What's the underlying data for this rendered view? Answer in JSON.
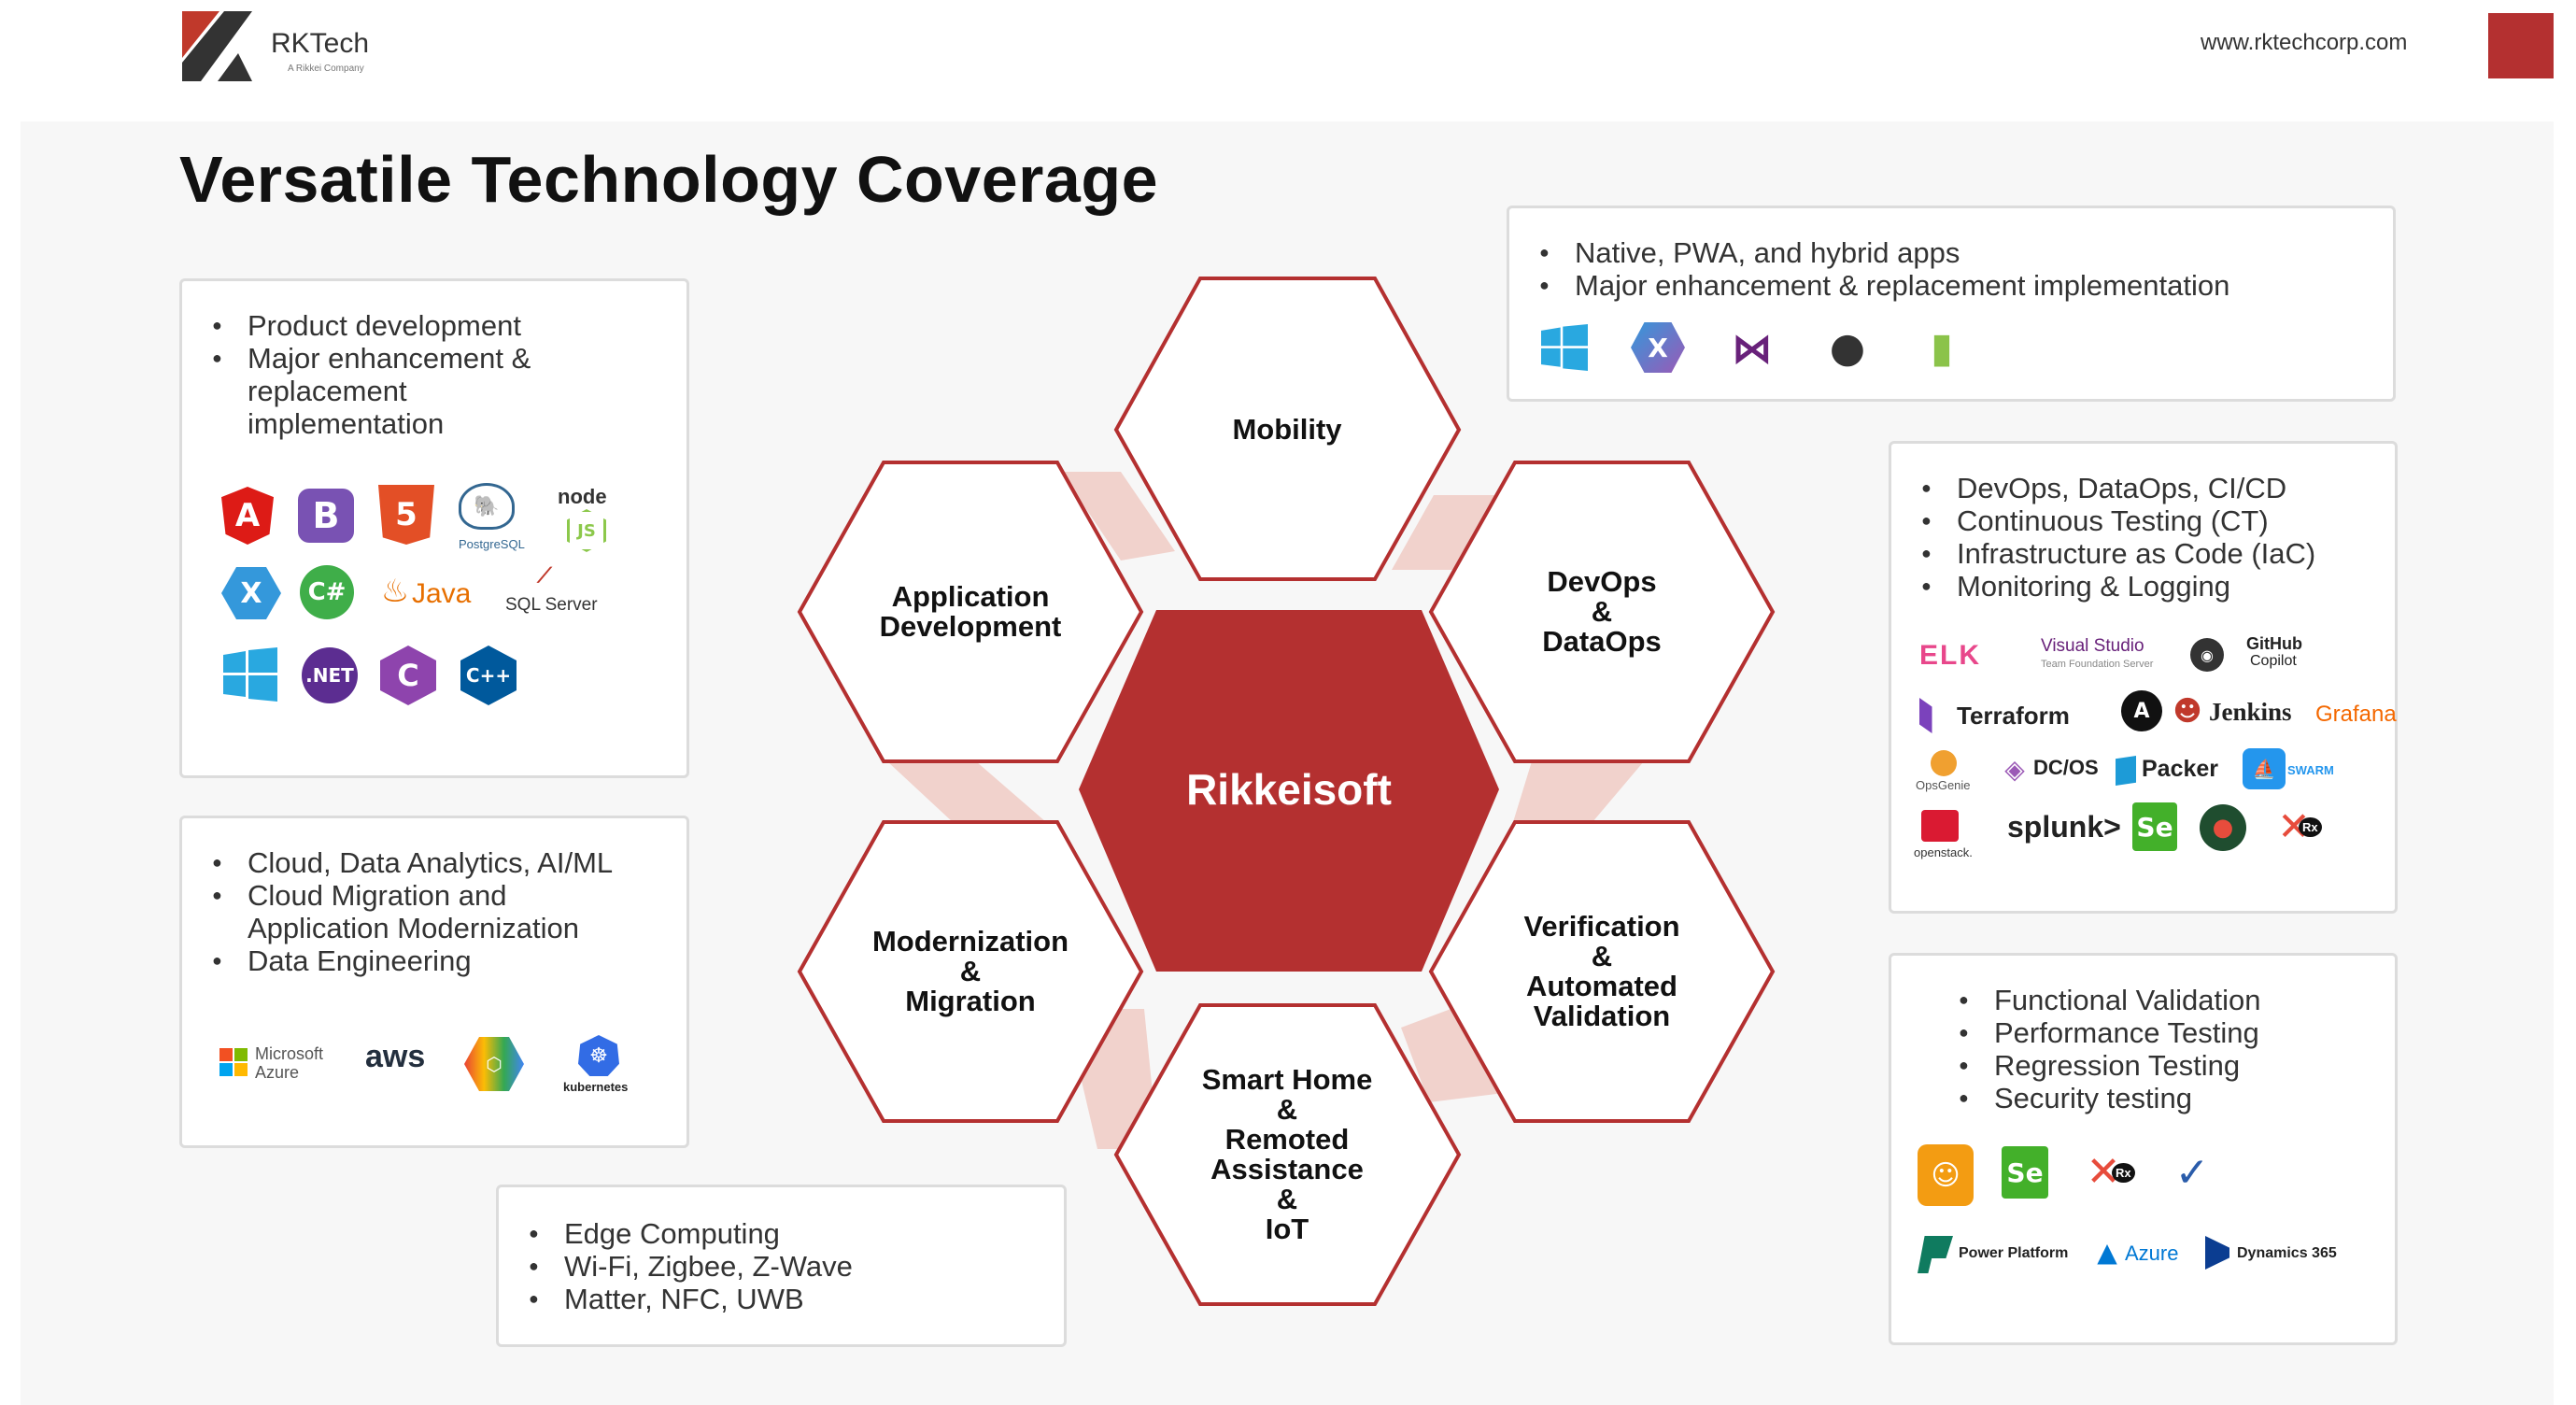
{
  "header": {
    "brand_name": "RKTech",
    "brand_sub": "A Rikkei Company",
    "website": "www.rktechcorp.com"
  },
  "title": "Versatile Technology Coverage",
  "diagram": {
    "center": "Rikkeisoft",
    "hexes": {
      "mobility": "Mobility",
      "app_dev_1": "Application",
      "app_dev_2": "Development",
      "devops_1": "DevOps",
      "devops_2": "&",
      "devops_3": "DataOps",
      "modern_1": "Modernization",
      "modern_2": "&",
      "modern_3": "Migration",
      "verif_1": "Verification",
      "verif_2": "&",
      "verif_3": "Automated",
      "verif_4": "Validation",
      "smart_1": "Smart Home",
      "smart_2": "&",
      "smart_3": "Remoted",
      "smart_4": "Assistance",
      "smart_5": "&",
      "smart_6": "IoT"
    }
  },
  "boxes": {
    "app_dev": {
      "items": [
        "Product development",
        "Major enhancement &",
        "replacement",
        "implementation"
      ],
      "logos": {
        "angular": "A",
        "bootstrap": "B",
        "html5": "5",
        "postgres": "PostgreSQL",
        "node": "node",
        "xamarin": "X",
        "csharp": "C#",
        "java": "Java",
        "sqlserver": "SQL Server",
        "dotnet": ".NET",
        "c_lang": "C",
        "cpp": "C++"
      }
    },
    "mobility": {
      "items": [
        "Native, PWA, and hybrid apps",
        "Major enhancement & replacement implementation"
      ]
    },
    "devops": {
      "items": [
        "DevOps, DataOps, CI/CD",
        "Continuous Testing (CT)",
        "Infrastructure as Code (IaC)",
        "Monitoring & Logging"
      ],
      "logos": {
        "elk": "ELK",
        "vs_tfs": "Visual Studio",
        "vs_tfs_sub": "Team Foundation Server",
        "copilot": "GitHub",
        "copilot_sub": "Copilot",
        "terraform": "Terraform",
        "ansible": "A",
        "jenkins": "Jenkins",
        "grafana": "Grafana",
        "opsgenie": "OpsGenie",
        "dcos": "DC/OS",
        "packer": "Packer",
        "swarm": "SWARM",
        "openstack": "openstack.",
        "splunk": "splunk>",
        "selenium": "Se",
        "rx": "Rx"
      }
    },
    "cloud": {
      "items": [
        "Cloud, Data Analytics, AI/ML",
        "Cloud Migration and",
        "Application Modernization",
        "Data Engineering"
      ],
      "logos": {
        "azure_1": "Microsoft",
        "azure_2": "Azure",
        "aws": "aws",
        "kubernetes": "kubernetes"
      }
    },
    "testing": {
      "items": [
        "Functional Validation",
        "Performance Testing",
        "Regression Testing",
        "Security testing"
      ],
      "logos": {
        "selenium": "Se",
        "rx": "Rx",
        "power_platform": "Power Platform",
        "azure": "Azure",
        "dynamics": "Dynamics 365"
      }
    },
    "iot": {
      "items": [
        "Edge Computing",
        "Wi-Fi, Zigbee, Z-Wave",
        "Matter, NFC, UWB"
      ]
    }
  },
  "colors": {
    "accent": "#b43030",
    "hex_border": "#b43030",
    "connector": "#f1d2cc"
  }
}
